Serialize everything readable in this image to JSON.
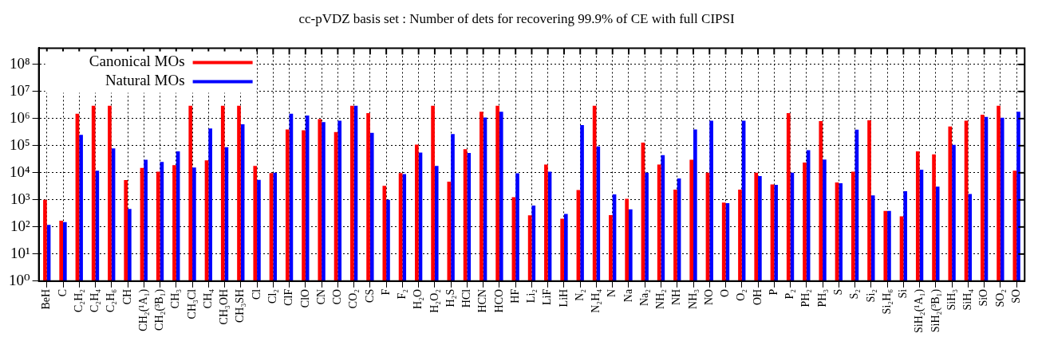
{
  "chart_data": {
    "type": "bar",
    "title": "cc-pVDZ basis set : Number of dets for recovering 99.9% of CE with full CIPSI",
    "categories": [
      "BeH",
      "C",
      "C₂H₂",
      "C₂H₄",
      "C₂H₆",
      "CH",
      "CH₂(¹A₁)",
      "CH₂(³B₁)",
      "CH₃",
      "CH₃Cl",
      "CH₄",
      "CH₃OH",
      "CH₃SH",
      "Cl",
      "Cl₂",
      "ClF",
      "ClO",
      "CN",
      "CO",
      "CO₂",
      "CS",
      "F",
      "F₂",
      "H₂O",
      "H₂O₂",
      "H₂S",
      "HCl",
      "HCN",
      "HCO",
      "HF",
      "Li₂",
      "LiF",
      "LiH",
      "N₂",
      "N₂H₄",
      "N",
      "Na",
      "Na₂",
      "NH₂",
      "NH",
      "NH₃",
      "NO",
      "O",
      "O₂",
      "OH",
      "P",
      "P₂",
      "PH₂",
      "PH₃",
      "S",
      "S₂",
      "Si₂",
      "Si₂H₆",
      "Si",
      "SiH₂(¹A₁)",
      "SiH₂(³B₁)",
      "SiH₃",
      "SiH₄",
      "SiO",
      "SO₂",
      "SO"
    ],
    "series": [
      {
        "name": "Canonical MOs",
        "color": "#ff0000",
        "values": [
          1000,
          170,
          1500000,
          3000000,
          3000000,
          5400,
          15000,
          11000,
          19000,
          3000000,
          29000,
          3000000,
          3000000,
          18000,
          9800,
          400000,
          370000,
          950000,
          320000,
          3000000,
          1600000,
          3300,
          9800,
          110000,
          3000000,
          4700,
          74000,
          1800000,
          3000000,
          1250,
          270,
          20000,
          200,
          2300,
          3000000,
          275,
          1100,
          130000,
          20000,
          2400,
          30000,
          10000,
          800,
          2400,
          10000,
          3700,
          1600000,
          24000,
          810000,
          4400,
          11000,
          870000,
          390,
          245,
          62000,
          48000,
          510000,
          830000,
          1400000,
          3000000,
          12000
        ]
      },
      {
        "name": "Natural MOs",
        "color": "#0000ff",
        "values": [
          120,
          150,
          250000,
          12000,
          80000,
          460,
          30000,
          25000,
          62000,
          15500,
          430000,
          88000,
          620000,
          5500,
          10000,
          1500000,
          1300000,
          740000,
          830000,
          3000000,
          300000,
          1000,
          9000,
          56000,
          18000,
          270000,
          54000,
          1100000,
          1800000,
          9500,
          620,
          11000,
          300,
          580000,
          94000,
          1600,
          450,
          10000,
          45000,
          6200,
          400000,
          830000,
          750,
          830000,
          7600,
          3600,
          10000,
          68000,
          31000,
          4100,
          390000,
          1450,
          390,
          2100,
          13000,
          3100,
          107000,
          1650,
          1150000,
          1070000,
          1800000
        ]
      }
    ],
    "log": "y",
    "ylim": [
      1,
      400000000
    ],
    "yticks": [
      {
        "value": 1,
        "label": "10⁰"
      },
      {
        "value": 10,
        "label": "10¹"
      },
      {
        "value": 100,
        "label": "10²"
      },
      {
        "value": 1000,
        "label": "10³"
      },
      {
        "value": 10000,
        "label": "10⁴"
      },
      {
        "value": 100000,
        "label": "10⁵"
      },
      {
        "value": 1000000,
        "label": "10⁶"
      },
      {
        "value": 10000000,
        "label": "10⁷"
      },
      {
        "value": 100000000,
        "label": "10⁸"
      }
    ],
    "grid": true,
    "legend": "top left"
  }
}
